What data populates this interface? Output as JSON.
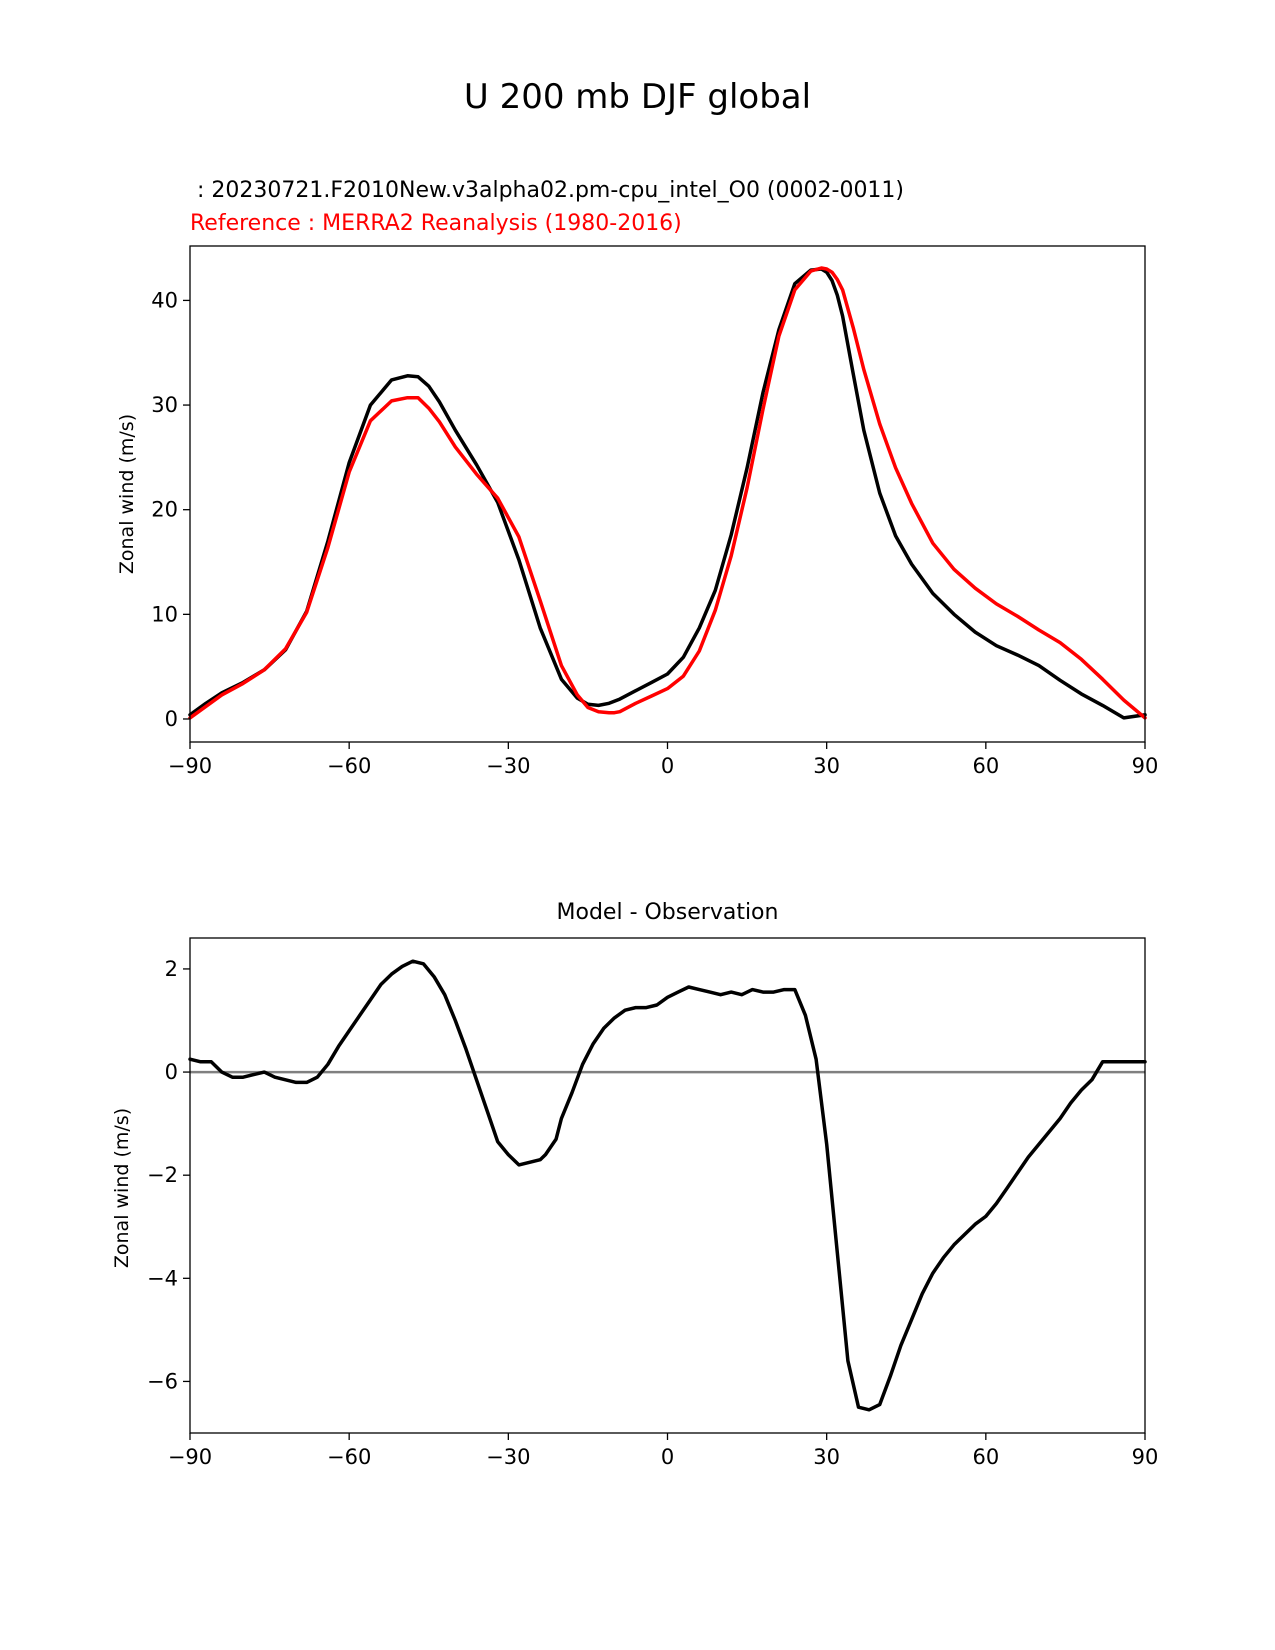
{
  "figure": {
    "title": "U 200 mb DJF global",
    "colors": {
      "background": "#ffffff",
      "test": "#000000",
      "reference": "#ff0000",
      "zero_line": "#808080"
    }
  },
  "chart_data": [
    {
      "type": "line",
      "subtitle_test": " : 20230721.F2010New.v3alpha02.pm-cpu_intel_O0 (0002-0011)",
      "subtitle_reference": "Reference : MERRA2 Reanalysis (1980-2016)",
      "xlabel": "",
      "ylabel": "Zonal wind (m/s)",
      "xlim": [
        -90,
        90
      ],
      "ylim": [
        -2.2,
        45.2
      ],
      "xticks": [
        -90,
        -60,
        -30,
        0,
        30,
        60,
        90
      ],
      "xtick_labels": [
        "−90",
        "−60",
        "−30",
        "0",
        "30",
        "60",
        "90"
      ],
      "yticks": [
        0,
        10,
        20,
        30,
        40
      ],
      "ytick_labels": [
        "0",
        "10",
        "20",
        "30",
        "40"
      ],
      "series": [
        {
          "name": "test",
          "color": "#000000",
          "x": [
            -90,
            -87,
            -84,
            -80,
            -76,
            -72,
            -68,
            -64,
            -60,
            -56,
            -52,
            -49,
            -47,
            -45,
            -43,
            -40,
            -36,
            -32,
            -28,
            -24,
            -20,
            -17,
            -15,
            -13,
            -11,
            -9,
            -6,
            -3,
            0,
            3,
            6,
            9,
            12,
            15,
            18,
            21,
            24,
            27,
            29,
            30,
            31,
            32,
            33,
            35,
            37,
            40,
            43,
            46,
            50,
            54,
            58,
            62,
            66,
            70,
            74,
            78,
            82,
            86,
            90
          ],
          "y": [
            0.4,
            1.5,
            2.5,
            3.5,
            4.7,
            6.6,
            10.3,
            17.0,
            24.5,
            30.0,
            32.4,
            32.8,
            32.7,
            31.8,
            30.3,
            27.6,
            24.3,
            20.7,
            15.2,
            8.7,
            3.8,
            2.0,
            1.4,
            1.3,
            1.5,
            1.9,
            2.7,
            3.5,
            4.3,
            5.9,
            8.7,
            12.3,
            17.6,
            24.0,
            31.2,
            37.2,
            41.6,
            42.9,
            43.0,
            42.7,
            41.9,
            40.5,
            38.5,
            33.0,
            27.6,
            21.6,
            17.5,
            14.8,
            12.0,
            10.0,
            8.3,
            7.0,
            6.1,
            5.1,
            3.7,
            2.4,
            1.3,
            0.1,
            0.4
          ]
        },
        {
          "name": "reference",
          "color": "#ff0000",
          "x": [
            -90,
            -87,
            -84,
            -80,
            -76,
            -72,
            -68,
            -64,
            -60,
            -56,
            -52,
            -49,
            -47,
            -45,
            -43,
            -40,
            -36,
            -32,
            -28,
            -24,
            -20,
            -17,
            -15,
            -13,
            -11,
            -10,
            -9,
            -6,
            -3,
            0,
            3,
            6,
            9,
            12,
            15,
            18,
            21,
            24,
            27,
            29,
            30,
            31,
            32,
            33,
            35,
            37,
            40,
            43,
            46,
            50,
            54,
            58,
            62,
            66,
            70,
            74,
            78,
            82,
            86,
            90
          ],
          "y": [
            0.1,
            1.2,
            2.3,
            3.4,
            4.7,
            6.7,
            10.2,
            16.4,
            23.6,
            28.5,
            30.4,
            30.7,
            30.7,
            29.7,
            28.4,
            26.0,
            23.4,
            21.1,
            17.4,
            11.3,
            5.1,
            2.3,
            1.1,
            0.7,
            0.6,
            0.6,
            0.7,
            1.5,
            2.2,
            2.9,
            4.1,
            6.5,
            10.4,
            15.6,
            22.1,
            29.6,
            36.6,
            41.0,
            42.8,
            43.1,
            43.0,
            42.7,
            42.0,
            41.0,
            37.4,
            33.4,
            28.2,
            24.0,
            20.6,
            16.8,
            14.3,
            12.5,
            11.0,
            9.8,
            8.5,
            7.3,
            5.7,
            3.8,
            1.8,
            0.1
          ]
        }
      ]
    },
    {
      "type": "line",
      "title": "Model - Observation",
      "xlabel": "",
      "ylabel": "Zonal wind (m/s)",
      "xlim": [
        -90,
        90
      ],
      "ylim": [
        -7.0,
        2.6
      ],
      "xticks": [
        -90,
        -60,
        -30,
        0,
        30,
        60,
        90
      ],
      "xtick_labels": [
        "−90",
        "−60",
        "−30",
        "0",
        "30",
        "60",
        "90"
      ],
      "yticks": [
        2,
        0,
        -2,
        -4,
        -6
      ],
      "ytick_labels": [
        "2",
        "0",
        "−2",
        "−4",
        "−6"
      ],
      "reference_line": {
        "y": 0,
        "color": "#808080"
      },
      "series": [
        {
          "name": "difference",
          "color": "#000000",
          "x": [
            -90,
            -88,
            -86,
            -84,
            -82,
            -80,
            -78,
            -76,
            -74,
            -72,
            -70,
            -68,
            -66,
            -64,
            -62,
            -60,
            -58,
            -56,
            -54,
            -52,
            -50,
            -48,
            -46,
            -44,
            -42,
            -40,
            -38,
            -36,
            -34,
            -32,
            -30,
            -28,
            -26,
            -24,
            -23,
            -21,
            -20,
            -18,
            -16,
            -14,
            -12,
            -10,
            -8,
            -6,
            -4,
            -2,
            0,
            2,
            4,
            6,
            8,
            10,
            12,
            14,
            16,
            18,
            20,
            22,
            24,
            26,
            28,
            30,
            32,
            34,
            36,
            38,
            40,
            42,
            44,
            46,
            48,
            50,
            52,
            54,
            56,
            58,
            60,
            62,
            64,
            66,
            68,
            70,
            72,
            74,
            76,
            78,
            80,
            82,
            84,
            86,
            88,
            90
          ],
          "y": [
            0.25,
            0.2,
            0.2,
            0.0,
            -0.1,
            -0.1,
            -0.05,
            0.0,
            -0.1,
            -0.15,
            -0.2,
            -0.2,
            -0.1,
            0.15,
            0.5,
            0.8,
            1.1,
            1.4,
            1.7,
            1.9,
            2.05,
            2.15,
            2.1,
            1.85,
            1.5,
            1.0,
            0.45,
            -0.15,
            -0.75,
            -1.35,
            -1.6,
            -1.8,
            -1.75,
            -1.7,
            -1.6,
            -1.3,
            -0.9,
            -0.4,
            0.15,
            0.55,
            0.85,
            1.05,
            1.2,
            1.25,
            1.25,
            1.3,
            1.45,
            1.55,
            1.65,
            1.6,
            1.55,
            1.5,
            1.55,
            1.5,
            1.6,
            1.55,
            1.55,
            1.6,
            1.6,
            1.1,
            0.25,
            -1.4,
            -3.5,
            -5.6,
            -6.5,
            -6.55,
            -6.45,
            -5.9,
            -5.3,
            -4.8,
            -4.3,
            -3.9,
            -3.6,
            -3.35,
            -3.15,
            -2.95,
            -2.8,
            -2.55,
            -2.25,
            -1.95,
            -1.65,
            -1.4,
            -1.15,
            -0.9,
            -0.6,
            -0.35,
            -0.15,
            0.2,
            0.2,
            0.2,
            0.2,
            0.2
          ]
        }
      ]
    }
  ]
}
